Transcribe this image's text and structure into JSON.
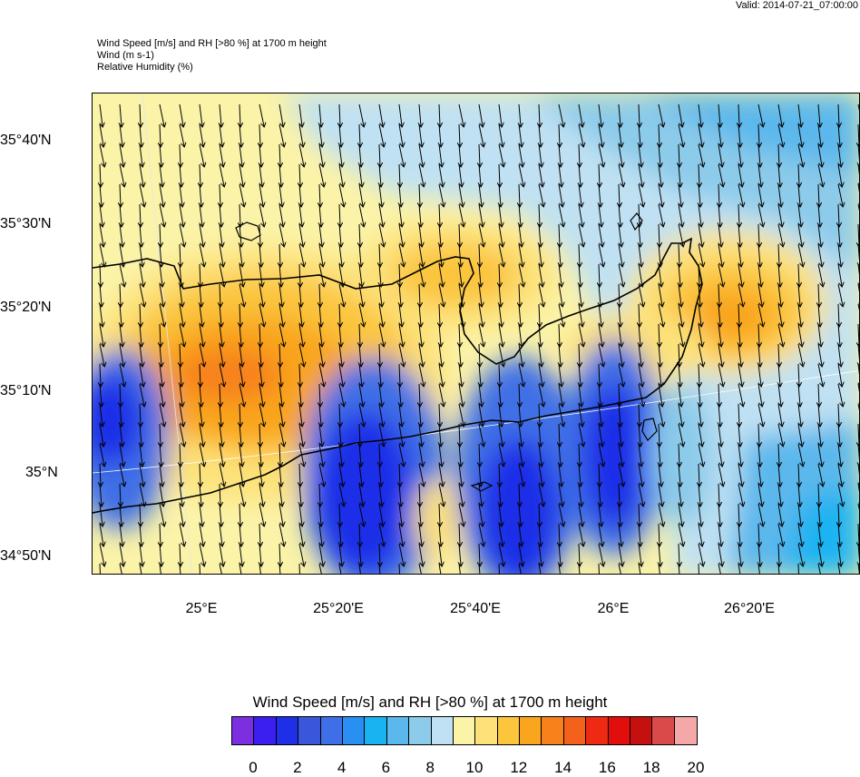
{
  "valid_time": "Valid: 2014-07-21_07:00:00",
  "header": {
    "line1": "Wind Speed [m/s] and RH [>80 %] at 1700 m height",
    "line2": "Wind   (m s-1)",
    "line3": "Relative Humidity   (%)"
  },
  "lat_labels": [
    "35°40'N",
    "35°30'N",
    "35°20'N",
    "35°10'N",
    "35°N",
    "34°50'N"
  ],
  "lon_labels": [
    "25°E",
    "25°20'E",
    "25°40'E",
    "26°E",
    "26°20'E"
  ],
  "colorbar": {
    "title": "Wind Speed [m/s] and RH [>80 %] at 1700 m height",
    "labels": [
      "0",
      "2",
      "4",
      "6",
      "8",
      "10",
      "12",
      "14",
      "16",
      "18",
      "20"
    ],
    "colors": [
      "#7b2fe0",
      "#3b1ff0",
      "#1f2fe8",
      "#3a57dc",
      "#3f6fe6",
      "#2a8ff2",
      "#1ab3f2",
      "#5bb8ec",
      "#8ccbea",
      "#bfe1f3",
      "#fbf3a8",
      "#fde27a",
      "#fbc53c",
      "#f9a51d",
      "#f7821b",
      "#f4611b",
      "#ef2a13",
      "#e20d0d",
      "#c60f0f",
      "#db4a4a",
      "#f5a8a8"
    ]
  }
}
